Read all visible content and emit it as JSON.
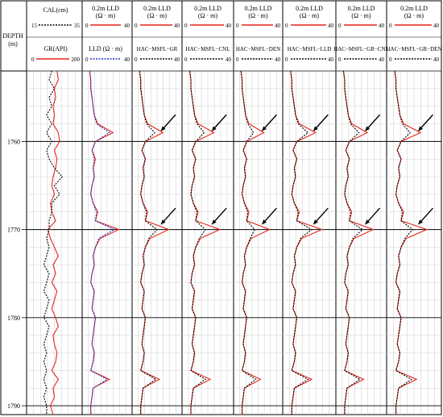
{
  "depth_track": {
    "title": "DEPTH",
    "unit": "(m)",
    "ticks": [
      1760,
      1770,
      1780,
      1790
    ]
  },
  "track1": {
    "cal_label": "CAL(cm)",
    "cal_min": "15",
    "cal_max": "35",
    "gr_label": "GR(API)",
    "gr_min": "0",
    "gr_max": "200"
  },
  "track2": {
    "top_label_1": "0.2m LLD",
    "top_label_2": "(Ω · m)",
    "top_min": "0",
    "top_max": "40",
    "bottom_label": "LLD (Ω · m)",
    "bottom_min": "0",
    "bottom_max": "40"
  },
  "panels": [
    {
      "top_label_1": "0.2m LLD",
      "top_label_2": "(Ω · m)",
      "top_min": "0",
      "top_max": "40",
      "bottom_label": "HAC−MSFL−GR",
      "bottom_min": "0",
      "bottom_max": "40"
    },
    {
      "top_label_1": "0.2m LLD",
      "top_label_2": "(Ω · m)",
      "top_min": "0",
      "top_max": "40",
      "bottom_label": "HAC−MSFL−CNL",
      "bottom_min": "0",
      "bottom_max": "40"
    },
    {
      "top_label_1": "0.2m LLD",
      "top_label_2": "(Ω · m)",
      "top_min": "0",
      "top_max": "40",
      "bottom_label": "HAC−MSFL−DEN",
      "bottom_min": "0",
      "bottom_max": "40"
    },
    {
      "top_label_1": "0.2m LLD",
      "top_label_2": "(Ω · m)",
      "top_min": "0",
      "top_max": "40",
      "bottom_label": "HAC−MSFL−LLD",
      "bottom_min": "0",
      "bottom_max": "40"
    },
    {
      "top_label_1": "0.2m LLD",
      "top_label_2": "(Ω · m)",
      "top_min": "0",
      "top_max": "40",
      "bottom_label": "HAC−MSFL−GR−CNL",
      "bottom_min": "0",
      "bottom_max": "40"
    },
    {
      "top_label_1": "0.2m LLD",
      "top_label_2": "(Ω · m)",
      "top_min": "0",
      "top_max": "40",
      "bottom_label": "HAC−MSFL−GR−DEN",
      "bottom_min": "0",
      "bottom_max": "40"
    }
  ],
  "colors": {
    "red": "#e8251b",
    "black": "#000000",
    "blue": "#2233cc",
    "grid": "#bdbdbd"
  },
  "chart_data": {
    "type": "line",
    "ylabel": "DEPTH (m)",
    "ylim": [
      1752,
      1791
    ],
    "depth": [
      1752,
      1753,
      1754,
      1755,
      1756,
      1757,
      1758,
      1759,
      1760,
      1761,
      1762,
      1763,
      1764,
      1765,
      1766,
      1767,
      1768,
      1769,
      1770,
      1771,
      1772,
      1773,
      1774,
      1775,
      1776,
      1777,
      1778,
      1779,
      1780,
      1781,
      1782,
      1783,
      1784,
      1785,
      1786,
      1787,
      1788,
      1789,
      1790,
      1791
    ],
    "series": [
      {
        "name": "CAL(cm)",
        "track": 1,
        "xlim": [
          15,
          35
        ],
        "values": [
          24,
          23,
          25,
          23,
          24,
          22,
          24,
          22,
          24,
          22,
          23,
          25,
          28,
          25,
          27,
          24,
          24,
          23,
          23,
          22,
          23,
          22,
          21,
          23,
          22,
          21,
          23,
          22,
          21,
          23,
          22,
          21,
          22,
          21,
          22,
          21,
          22,
          21,
          22,
          22
        ]
      },
      {
        "name": "GR(API)",
        "track": 1,
        "xlim": [
          0,
          200
        ],
        "values": [
          110,
          115,
          100,
          105,
          95,
          100,
          95,
          115,
          120,
          100,
          110,
          105,
          95,
          90,
          100,
          85,
          90,
          105,
          75,
          85,
          100,
          115,
          95,
          105,
          90,
          110,
          100,
          90,
          105,
          115,
          95,
          100,
          110,
          105,
          90,
          115,
          95,
          100,
          85,
          95
        ]
      },
      {
        "name": "0.2m LLD",
        "track": 2,
        "xlim": [
          0,
          40
        ],
        "values": [
          5,
          6,
          6,
          7,
          8,
          9,
          12,
          25,
          10,
          7,
          10,
          8,
          9,
          7,
          6,
          8,
          12,
          10,
          30,
          14,
          10,
          8,
          9,
          7,
          6,
          9,
          8,
          7,
          10,
          9,
          8,
          7,
          9,
          8,
          6,
          22,
          8,
          7,
          6,
          6
        ]
      },
      {
        "name": "LLD (Ω · m)",
        "track": 2,
        "xlim": [
          0,
          40
        ],
        "values": [
          5,
          6,
          6,
          7,
          8,
          9,
          11,
          22,
          10,
          7,
          9,
          8,
          9,
          7,
          6,
          8,
          11,
          10,
          26,
          13,
          10,
          8,
          9,
          7,
          6,
          9,
          8,
          7,
          10,
          9,
          8,
          7,
          9,
          8,
          6,
          20,
          8,
          7,
          6,
          6
        ]
      },
      {
        "name": "0.2m LLD",
        "track": "3-8",
        "xlim": [
          0,
          40
        ],
        "values": [
          5,
          6,
          6,
          7,
          8,
          9,
          12,
          25,
          10,
          7,
          10,
          8,
          9,
          7,
          6,
          8,
          12,
          10,
          30,
          14,
          10,
          8,
          9,
          7,
          6,
          9,
          8,
          7,
          10,
          9,
          8,
          7,
          9,
          8,
          6,
          22,
          8,
          7,
          6,
          6
        ]
      },
      {
        "name": "HAC−MSFL−GR",
        "track": 3,
        "xlim": [
          0,
          40
        ],
        "values": [
          5,
          6,
          6,
          7,
          8,
          9,
          11,
          18,
          10,
          7,
          10,
          8,
          9,
          7,
          6,
          8,
          11,
          10,
          20,
          13,
          10,
          8,
          9,
          7,
          6,
          9,
          8,
          7,
          10,
          9,
          8,
          7,
          9,
          8,
          6,
          19,
          8,
          7,
          6,
          6
        ]
      },
      {
        "name": "HAC−MSFL−CNL",
        "track": 4,
        "xlim": [
          0,
          40
        ],
        "values": [
          5,
          6,
          6,
          7,
          8,
          9,
          11,
          17,
          10,
          7,
          10,
          8,
          9,
          7,
          6,
          8,
          11,
          10,
          18,
          13,
          10,
          8,
          9,
          7,
          6,
          9,
          8,
          7,
          10,
          9,
          8,
          7,
          9,
          8,
          6,
          18,
          8,
          7,
          6,
          6
        ]
      },
      {
        "name": "HAC−MSFL−DEN",
        "track": 5,
        "xlim": [
          0,
          40
        ],
        "values": [
          5,
          6,
          6,
          7,
          8,
          9,
          11,
          16,
          10,
          7,
          10,
          8,
          9,
          7,
          6,
          8,
          11,
          10,
          17,
          13,
          10,
          8,
          9,
          7,
          6,
          9,
          8,
          7,
          10,
          9,
          8,
          7,
          9,
          8,
          6,
          18,
          8,
          7,
          6,
          6
        ]
      },
      {
        "name": "HAC−MSFL−LLD",
        "track": 6,
        "xlim": [
          0,
          40
        ],
        "values": [
          5,
          6,
          6,
          7,
          8,
          9,
          11,
          19,
          10,
          7,
          10,
          8,
          9,
          7,
          6,
          8,
          11,
          10,
          22,
          13,
          10,
          8,
          9,
          7,
          6,
          9,
          8,
          7,
          10,
          9,
          8,
          7,
          9,
          8,
          6,
          19,
          8,
          7,
          6,
          6
        ]
      },
      {
        "name": "HAC−MSFL−GR−CNL",
        "track": 7,
        "xlim": [
          0,
          40
        ],
        "values": [
          5,
          6,
          6,
          7,
          8,
          9,
          11,
          18,
          10,
          7,
          10,
          8,
          9,
          7,
          6,
          8,
          11,
          10,
          21,
          13,
          10,
          8,
          9,
          7,
          6,
          9,
          8,
          7,
          10,
          9,
          8,
          7,
          9,
          8,
          6,
          19,
          8,
          7,
          6,
          6
        ]
      },
      {
        "name": "HAC−MSFL−GR−DEN",
        "track": 8,
        "xlim": [
          0,
          40
        ],
        "values": [
          5,
          6,
          6,
          7,
          8,
          9,
          11,
          17,
          10,
          7,
          10,
          8,
          9,
          7,
          6,
          8,
          11,
          10,
          19,
          13,
          10,
          8,
          9,
          7,
          6,
          9,
          8,
          7,
          10,
          9,
          8,
          7,
          9,
          8,
          6,
          18,
          8,
          7,
          6,
          6
        ]
      }
    ],
    "arrows_depth": [
      1758.8,
      1769.4
    ],
    "grid": true
  }
}
